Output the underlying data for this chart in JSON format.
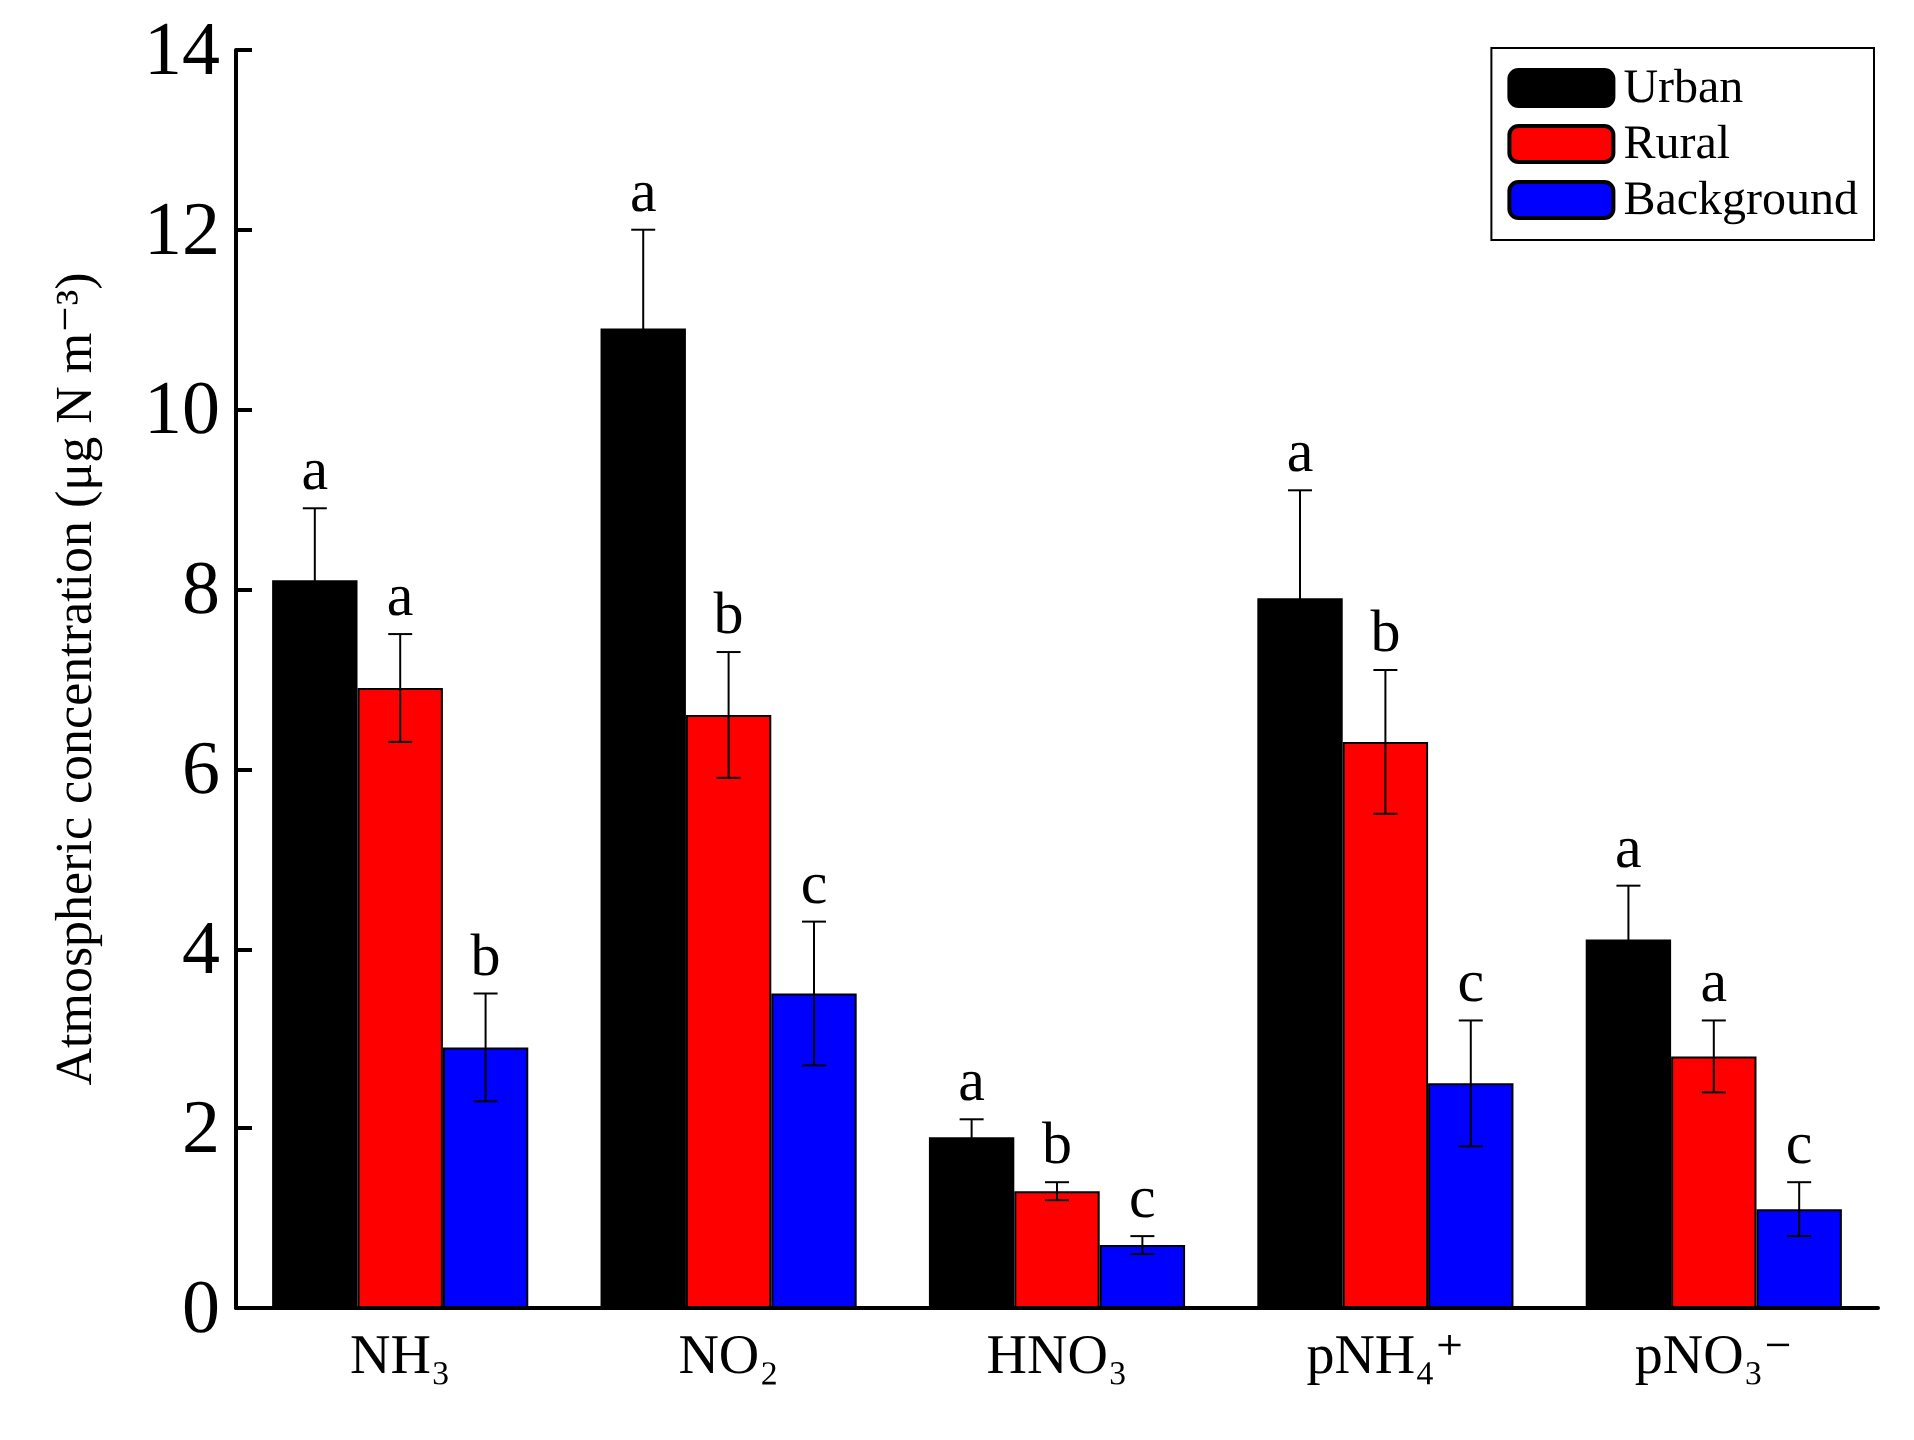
{
  "chart_data": {
    "type": "bar",
    "ylabel": "Atmospheric concentration (μg N m⁻³)",
    "categories": [
      "NH₃",
      "NO₂",
      "HNO₃",
      "pNH₄⁺",
      "pNO₃⁻"
    ],
    "ylim": [
      0,
      14
    ],
    "yticks": [
      0,
      2,
      4,
      6,
      8,
      10,
      12,
      14
    ],
    "grid": false,
    "legend": "top right",
    "series": [
      {
        "name": "Urban",
        "color": "#000000",
        "values": [
          8.1,
          10.9,
          1.9,
          7.9,
          4.1
        ],
        "errors": [
          0.8,
          1.1,
          0.2,
          1.2,
          0.6
        ],
        "value_labels": [
          "a",
          "a",
          "a",
          "a",
          "a"
        ]
      },
      {
        "name": "Rural",
        "color": "#ff0000",
        "values": [
          6.9,
          6.6,
          1.3,
          6.3,
          2.8
        ],
        "errors": [
          0.6,
          0.7,
          0.1,
          0.8,
          0.4
        ],
        "value_labels": [
          "a",
          "b",
          "b",
          "b",
          "a"
        ]
      },
      {
        "name": "Background",
        "color": "#0000ff",
        "values": [
          2.9,
          3.5,
          0.7,
          2.5,
          1.1
        ],
        "errors": [
          0.6,
          0.8,
          0.1,
          0.7,
          0.3
        ],
        "value_labels": [
          "b",
          "c",
          "c",
          "c",
          "c"
        ]
      }
    ]
  }
}
